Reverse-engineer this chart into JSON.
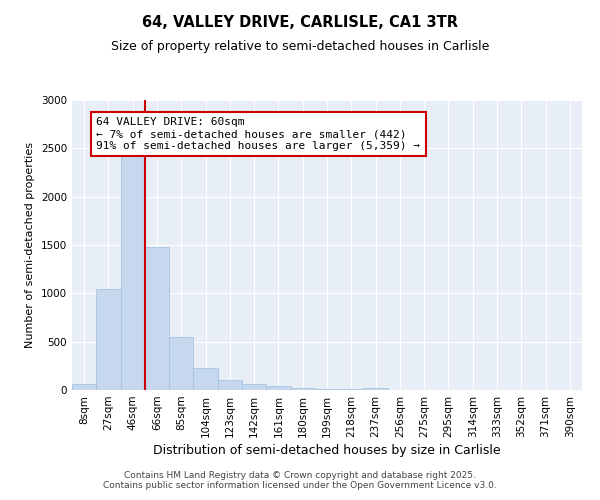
{
  "title": "64, VALLEY DRIVE, CARLISLE, CA1 3TR",
  "subtitle": "Size of property relative to semi-detached houses in Carlisle",
  "xlabel": "Distribution of semi-detached houses by size in Carlisle",
  "ylabel": "Number of semi-detached properties",
  "property_label": "64 VALLEY DRIVE: 60sqm",
  "pct_smaller": "7%",
  "pct_larger": "91%",
  "n_smaller": 442,
  "n_larger": 5359,
  "bin_labels": [
    "8sqm",
    "27sqm",
    "46sqm",
    "66sqm",
    "85sqm",
    "104sqm",
    "123sqm",
    "142sqm",
    "161sqm",
    "180sqm",
    "199sqm",
    "218sqm",
    "237sqm",
    "256sqm",
    "275sqm",
    "295sqm",
    "314sqm",
    "333sqm",
    "352sqm",
    "371sqm",
    "390sqm"
  ],
  "bar_values": [
    60,
    1040,
    2470,
    1480,
    545,
    230,
    100,
    60,
    40,
    20,
    15,
    10,
    25,
    5,
    2,
    1,
    0,
    0,
    0,
    0,
    0
  ],
  "bar_color": "#c5d8ee",
  "bar_edge_color": "#a0bedd",
  "vline_color": "#cc0000",
  "vline_x": 2.5,
  "ylim": [
    0,
    3000
  ],
  "yticks": [
    0,
    500,
    1000,
    1500,
    2000,
    2500,
    3000
  ],
  "background_color": "#e8eef6",
  "grid_color": "#ffffff",
  "footer": "Contains HM Land Registry data © Crown copyright and database right 2025.\nContains public sector information licensed under the Open Government Licence v3.0.",
  "title_fontsize": 10.5,
  "subtitle_fontsize": 9,
  "ylabel_fontsize": 8,
  "xlabel_fontsize": 9,
  "tick_fontsize": 7.5,
  "footer_fontsize": 6.5,
  "annotation_fontsize": 8
}
